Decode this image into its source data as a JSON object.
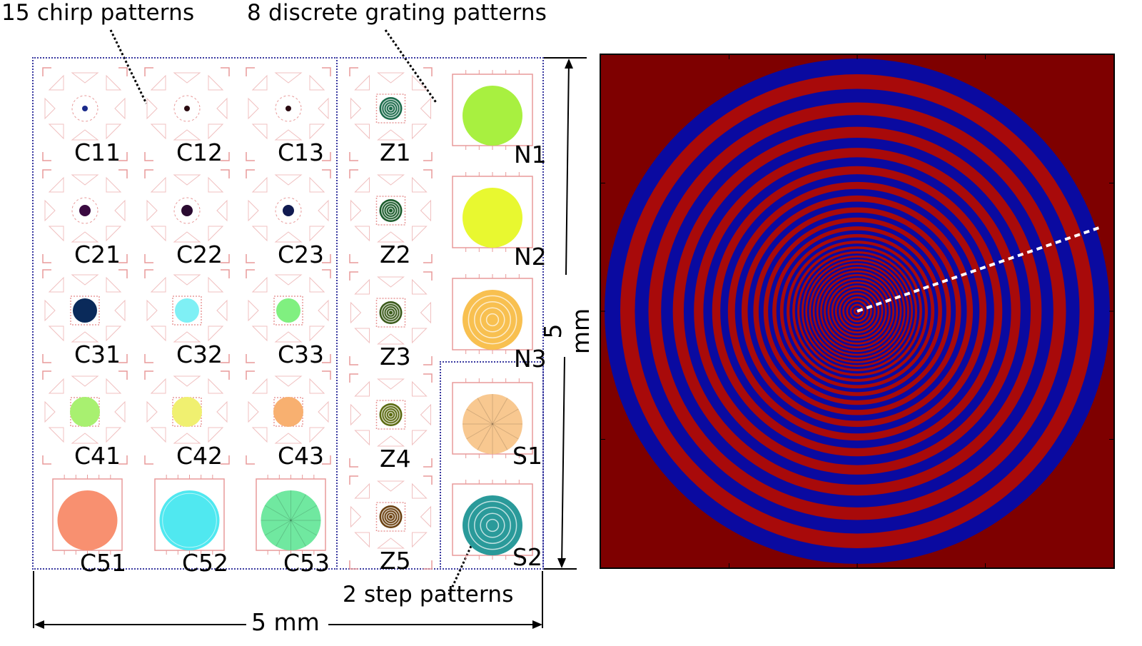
{
  "annotations": {
    "chirp_title": "15 chirp patterns",
    "grating_title": "8 discrete grating patterns",
    "step_title": "2 step patterns",
    "width_dim": "5 mm",
    "height_dim": "5 mm"
  },
  "chirp_patterns": [
    {
      "label": "C11",
      "color": "#1a2a8a",
      "size": "dot-xs",
      "style": "solid"
    },
    {
      "label": "C12",
      "color": "#2a0a10",
      "size": "dot-xs",
      "style": "solid"
    },
    {
      "label": "C13",
      "color": "#2a0a10",
      "size": "dot-xs",
      "style": "solid"
    },
    {
      "label": "C21",
      "color": "#3a0a40",
      "size": "dot-s",
      "style": "solid"
    },
    {
      "label": "C22",
      "color": "#2a0a30",
      "size": "dot-s",
      "style": "solid"
    },
    {
      "label": "C23",
      "color": "#101a50",
      "size": "dot-s",
      "style": "solid"
    },
    {
      "label": "C31",
      "color": "#0a2a5a",
      "size": "dot-m",
      "style": "solid"
    },
    {
      "label": "C32",
      "color": "#7ff0f5",
      "size": "dot-m",
      "style": "solid"
    },
    {
      "label": "C33",
      "color": "#80f080",
      "size": "dot-m",
      "style": "solid"
    },
    {
      "label": "C41",
      "color": "#a8f070",
      "size": "dot-l",
      "style": "solid"
    },
    {
      "label": "C42",
      "color": "#f0f070",
      "size": "dot-l",
      "style": "solid"
    },
    {
      "label": "C43",
      "color": "#f8b070",
      "size": "dot-l",
      "style": "solid"
    },
    {
      "label": "C51",
      "color": "#f89070",
      "size": "large",
      "style": "solid"
    },
    {
      "label": "C52",
      "color": "#50e8f0",
      "size": "large",
      "style": "radial"
    },
    {
      "label": "C53",
      "color": "#70e8a0",
      "size": "large",
      "style": "spokes"
    }
  ],
  "zone_patterns": [
    {
      "label": "Z1",
      "color": "#1a6a4a"
    },
    {
      "label": "Z2",
      "color": "#1a5a2a"
    },
    {
      "label": "Z3",
      "color": "#3a5a1a"
    },
    {
      "label": "Z4",
      "color": "#5a6a10"
    },
    {
      "label": "Z5",
      "color": "#6a4010"
    }
  ],
  "grating_patterns": [
    {
      "label": "N1",
      "color": "#a8f040",
      "style": "solid"
    },
    {
      "label": "N2",
      "color": "#e8f830",
      "style": "solid"
    },
    {
      "label": "N3",
      "color": "#f8c050",
      "style": "rings"
    }
  ],
  "step_patterns": [
    {
      "label": "S1",
      "color": "#f8c890",
      "style": "spokes"
    },
    {
      "label": "S2",
      "color": "#2a9a9a",
      "style": "rings"
    }
  ],
  "mask_image": {
    "background": "#7e0000",
    "ring_dark": "#0a0aa0",
    "ring_light": "#a80a0a",
    "dashed_line": "#ffffff"
  }
}
